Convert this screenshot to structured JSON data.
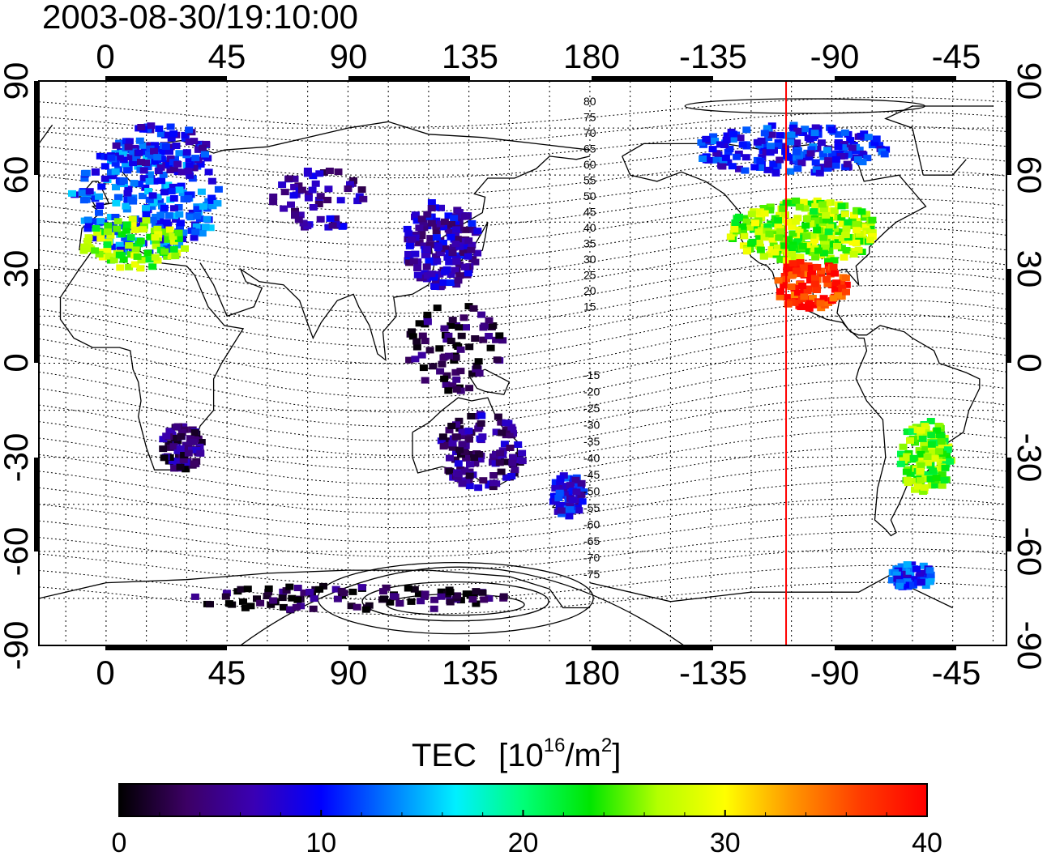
{
  "timestamp": "2003-08-30/19:10:00",
  "map": {
    "lon_ticks": [
      "0",
      "45",
      "90",
      "135",
      "180",
      "-135",
      "-90",
      "-45"
    ],
    "lat_ticks": [
      "90",
      "60",
      "30",
      "0",
      "-30",
      "-60",
      "-90"
    ],
    "contour_labels_north": [
      "80",
      "75",
      "70",
      "65",
      "60",
      "55",
      "50",
      "45",
      "40",
      "35",
      "30",
      "25",
      "20",
      "15"
    ],
    "contour_labels_south": [
      "-15",
      "-20",
      "-25",
      "-30",
      "-35",
      "-40",
      "-45",
      "-50",
      "-55",
      "-60",
      "-65",
      "-70",
      "-75"
    ],
    "terminator_lon": -107,
    "terminator_color": "#ff0000"
  },
  "colorbar": {
    "title": "TEC",
    "unit_prefix": "[10",
    "unit_exp": "16",
    "unit_mid": "/m",
    "unit_exp2": "2",
    "unit_suffix": "]",
    "min": 0,
    "max": 40,
    "ticks": [
      "0",
      "10",
      "20",
      "30",
      "40"
    ],
    "colors": [
      "#000000",
      "#3c0064",
      "#3a00b4",
      "#0000ff",
      "#0078ff",
      "#00f0ff",
      "#00ff78",
      "#00e600",
      "#b4ff00",
      "#ffff00",
      "#ff9600",
      "#ff3c00",
      "#ff0000"
    ]
  },
  "data_regions": [
    {
      "name": "europe",
      "lon": 15,
      "lat": 52,
      "rx": 28,
      "ry": 18,
      "tec": 12,
      "n": 260
    },
    {
      "name": "europe-south",
      "lon": 10,
      "lat": 38,
      "rx": 20,
      "ry": 8,
      "tec": 26,
      "n": 90
    },
    {
      "name": "scandinavia",
      "lon": 20,
      "lat": 68,
      "rx": 20,
      "ry": 8,
      "tec": 9,
      "n": 90
    },
    {
      "name": "siberia",
      "lon": 80,
      "lat": 52,
      "rx": 18,
      "ry": 10,
      "tec": 6,
      "n": 60
    },
    {
      "name": "east-asia",
      "lon": 125,
      "lat": 38,
      "rx": 14,
      "ry": 14,
      "tec": 7,
      "n": 170
    },
    {
      "name": "se-asia",
      "lon": 130,
      "lat": 5,
      "rx": 18,
      "ry": 14,
      "tec": 2,
      "n": 80
    },
    {
      "name": "south-africa",
      "lon": 28,
      "lat": -27,
      "rx": 8,
      "ry": 7,
      "tec": 4,
      "n": 80
    },
    {
      "name": "australia",
      "lon": 140,
      "lat": -28,
      "rx": 16,
      "ry": 12,
      "tec": 5,
      "n": 120
    },
    {
      "name": "new-zealand",
      "lon": 172,
      "lat": -42,
      "rx": 6,
      "ry": 7,
      "tec": 9,
      "n": 70
    },
    {
      "name": "north-america",
      "lon": -100,
      "lat": 42,
      "rx": 28,
      "ry": 10,
      "tec": 26,
      "n": 300
    },
    {
      "name": "mexico",
      "lon": -98,
      "lat": 25,
      "rx": 14,
      "ry": 8,
      "tec": 38,
      "n": 110
    },
    {
      "name": "canada",
      "lon": -105,
      "lat": 68,
      "rx": 36,
      "ry": 8,
      "tec": 10,
      "n": 200
    },
    {
      "name": "south-america",
      "lon": -55,
      "lat": -30,
      "rx": 10,
      "ry": 12,
      "tec": 25,
      "n": 150
    },
    {
      "name": "antarctica",
      "lon": 90,
      "lat": -75,
      "rx": 60,
      "ry": 4,
      "tec": 2,
      "n": 100
    },
    {
      "name": "antarctic-peninsula",
      "lon": -60,
      "lat": -68,
      "rx": 8,
      "ry": 4,
      "tec": 11,
      "n": 70
    }
  ]
}
